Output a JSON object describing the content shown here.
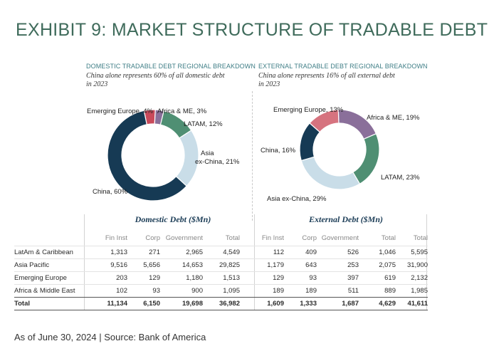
{
  "title": "EXHIBIT 9: MARKET STRUCTURE OF TRADABLE DEBT",
  "footer": "As of June 30, 2024 | Source: Bank of America",
  "chart_data": [
    {
      "type": "pie",
      "title": "DOMESTIC TRADABLE DEBT REGIONAL BREAKDOWN",
      "subtitle": "China alone represents 60% of all domestic debt in 2023",
      "categories": [
        "Emerging Europe",
        "Africa & ME",
        "LATAM",
        "Asia ex-China",
        "China"
      ],
      "labels": [
        "Emerging Europe, 4%",
        "Africa & ME, 3%",
        "LATAM, 12%",
        "Asia ex-China, 21%",
        "China, 60%"
      ],
      "values": [
        4,
        3,
        12,
        21,
        60
      ],
      "colors": [
        "#c94a5b",
        "#8a6f9a",
        "#4f8f73",
        "#c9dde8",
        "#163a54"
      ]
    },
    {
      "type": "pie",
      "title": "EXTERNAL TRADABLE DEBT REGIONAL BREAKDOWN",
      "subtitle": "China alone represents 16% of all external debt in 2023",
      "categories": [
        "Africa & ME",
        "LATAM",
        "Asia ex-China",
        "China",
        "Emerging Europe"
      ],
      "labels": [
        "Africa & ME, 19%",
        "LATAM, 23%",
        "Asia ex-China, 29%",
        "China, 16%",
        "Emerging Europe, 13%"
      ],
      "values": [
        19,
        23,
        29,
        16,
        13
      ],
      "colors": [
        "#8a6f9a",
        "#4f8f73",
        "#c9dde8",
        "#163a54",
        "#d6737f"
      ]
    },
    {
      "type": "table",
      "group_headers": [
        "Domestic Debt ($Mn)",
        "External Debt ($Mn)"
      ],
      "columns": [
        "",
        "Fin Inst",
        "Corp",
        "Government",
        "Total",
        "Fin Inst",
        "Corp",
        "Government",
        "Total",
        "Total"
      ],
      "rows": [
        [
          "LatAm & Caribbean",
          "1,313",
          "271",
          "2,965",
          "4,549",
          "112",
          "409",
          "526",
          "1,046",
          "5,595"
        ],
        [
          "Asia Pacific",
          "9,516",
          "5,656",
          "14,653",
          "29,825",
          "1,179",
          "643",
          "253",
          "2,075",
          "31,900"
        ],
        [
          "Emerging Europe",
          "203",
          "129",
          "1,180",
          "1,513",
          "129",
          "93",
          "397",
          "619",
          "2,132"
        ],
        [
          "Africa & Middle East",
          "102",
          "93",
          "900",
          "1,095",
          "189",
          "189",
          "511",
          "889",
          "1,985"
        ],
        [
          "Total",
          "11,134",
          "6,150",
          "19,698",
          "36,982",
          "1,609",
          "1,333",
          "1,687",
          "4,629",
          "41,611"
        ]
      ]
    }
  ]
}
